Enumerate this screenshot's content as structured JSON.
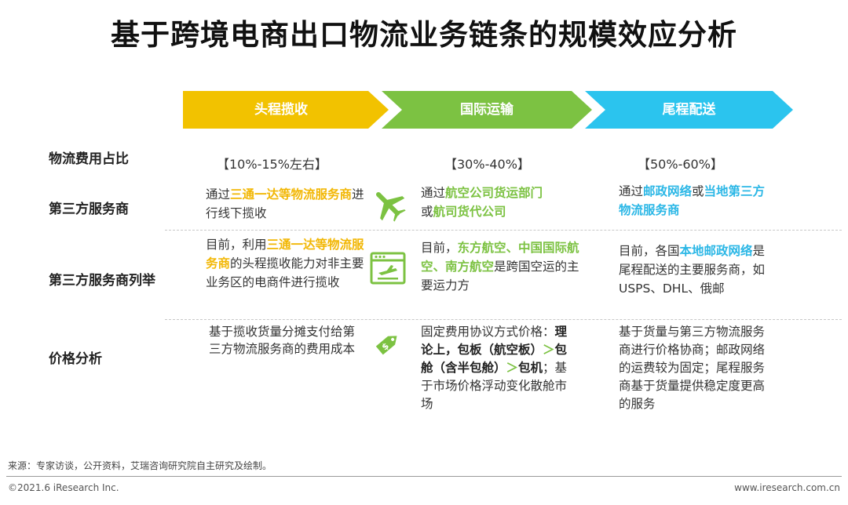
{
  "title": "基于跨境电商出口物流业务链条的规模效应分析",
  "colors": {
    "yellow": "#f2c200",
    "green": "#7cc242",
    "blue": "#2bc4ee"
  },
  "stages": [
    {
      "label": "头程揽收"
    },
    {
      "label": "国际运输"
    },
    {
      "label": "尾程配送"
    }
  ],
  "rows": {
    "cost_share": {
      "label": "物流费用占比",
      "values": [
        "【10%-15%左右】",
        "【30%-40%】",
        "【50%-60%】"
      ]
    },
    "provider": {
      "label": "第三方服务商",
      "c1": {
        "pre": "通过",
        "hl": "三通一达等物流服务商",
        "post": "进行线下揽收"
      },
      "c2": {
        "pre": "通过",
        "hl1": "航空公司货运部门",
        "mid": "或",
        "hl2": "航司货代公司"
      },
      "c3": {
        "pre": "通过",
        "hl1": "邮政网络",
        "mid": "或",
        "hl2": "当地第三方物流服务商"
      }
    },
    "examples": {
      "label": "第三方服务商列举",
      "c1": {
        "pre": "目前，利用",
        "hl": "三通一达等物流服务商",
        "post": "的头程揽收能力对非主要业务区的电商件进行揽收"
      },
      "c2": {
        "pre": "目前，",
        "hl": "东方航空、中国国际航空、南方航空",
        "post": "是跨国空运的主要运力方"
      },
      "c3": {
        "pre": "目前，各国",
        "hl": "本地邮政网络",
        "post": "是尾程配送的主要服务商，如USPS、DHL、俄邮"
      }
    },
    "pricing": {
      "label": "价格分析",
      "c1": "基于揽收货量分摊支付给第三方物流服务商的费用成本",
      "c2": {
        "pre": "固定费用协议方式价格：",
        "b1": "理论上，包板（航空板）",
        "gt1": "＞",
        "b2": "包舱（含半包舱）",
        "gt2": "＞",
        "b3": "包机",
        "post": "；基于市场价格浮动变化散舱市场"
      },
      "c3": "基于货量与第三方物流服务商进行价格协商；邮政网络的运费较为固定；尾程服务商基于货量提供稳定度更高的服务"
    }
  },
  "icons": [
    "airplane-icon",
    "browser-flight-icon",
    "price-tag-icon"
  ],
  "footer": {
    "source": "来源：专家访谈，公开资料，艾瑞咨询研究院自主研究及绘制。",
    "copyright": "©2021.6 iResearch Inc.",
    "website": "www.iresearch.com.cn"
  }
}
